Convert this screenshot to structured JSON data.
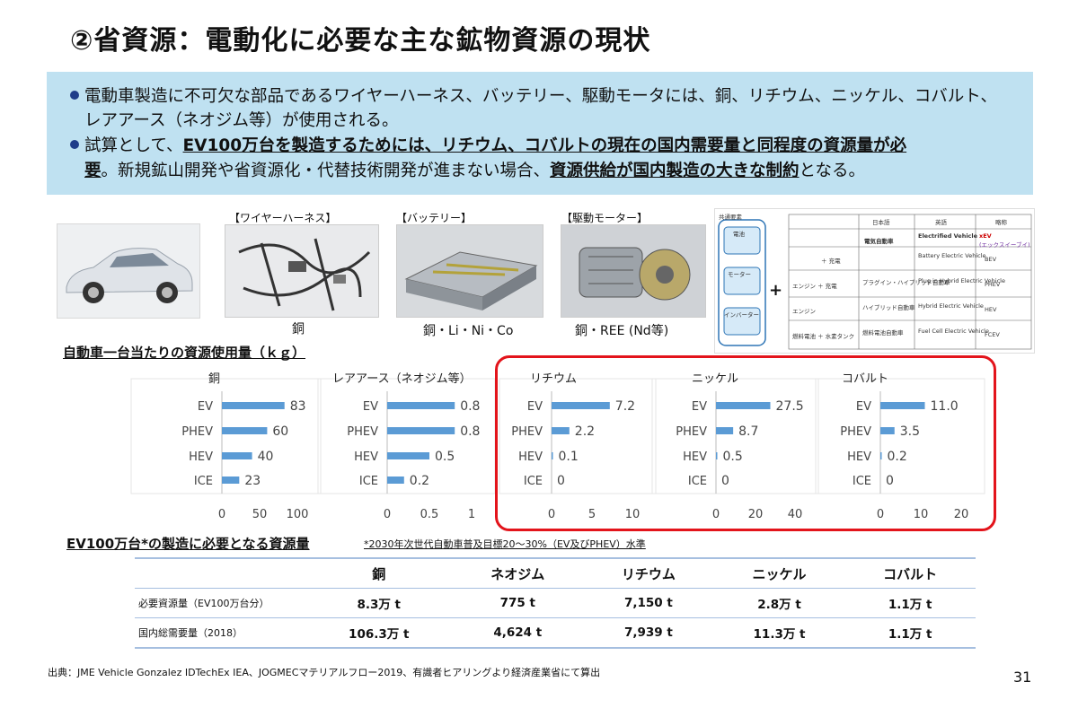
{
  "page": {
    "title": "②省資源：電動化に必要な主な鉱物資源の現状",
    "page_number": "31",
    "source": "出典：JME Vehicle Gonzalez IDTechEx IEA、JOGMECマテリアルフロー2019、有識者ヒアリングより経済産業省にて算出"
  },
  "summary": {
    "bullet1_line1": "電動車製造に不可欠な部品であるワイヤーハーネス、バッテリー、駆動モータには、銅、リチウム、ニッケル、コバルト、",
    "bullet1_line2": "レアアース（ネオジム等）が使用される。",
    "bullet2_a": "試算として、",
    "bullet2_b": "EV100万台を製造するためには、リチウム、コバルトの現在の国内需要量と同程度の資源量が必",
    "bullet2_c": "要",
    "bullet2_d": "。新規鉱山開発や省資源化・代替技術開発が進まない場合、",
    "bullet2_e": "資源供給が国内製造の大きな制約",
    "bullet2_f": "となる。"
  },
  "parts": {
    "harness_label": "【ワイヤーハーネス】",
    "harness_caption": "銅",
    "battery_label": "【バッテリー】",
    "battery_caption": "銅・Li・Ni・Co",
    "motor_label": "【駆動モーター】",
    "motor_caption": "銅・REE (Nd等)"
  },
  "xev_table": {
    "side_header": "共通要素",
    "side_items": [
      "電池",
      "モーター",
      "インバーター"
    ],
    "headers": [
      "日本語",
      "英語",
      "略称"
    ],
    "rows": [
      {
        "label": "",
        "jp": "電気自動車",
        "en": "Electrified Vehicle",
        "abbr": "xEV",
        "abbr_note": "(エックスイーブイ)"
      },
      {
        "label": "＋ 充電",
        "jp": "",
        "en": "Battery Electric Vehicle",
        "abbr": "BEV"
      },
      {
        "label": "エンジン ＋ 充電",
        "jp": "プラグイン・ハイブリッド自動車",
        "en": "Plug in Hybrid Electric Vehicle",
        "abbr": "PHEV"
      },
      {
        "label": "エンジン",
        "jp": "ハイブリッド自動車",
        "en": "Hybrid Electric Vehicle",
        "abbr": "HEV"
      },
      {
        "label": "燃料電池 ＋ 水素タンク",
        "jp": "燃料電池自動車",
        "en": "Fuel Cell Electric Vehicle",
        "abbr": "FCEV"
      }
    ],
    "plus": "+"
  },
  "usage_heading": "自動車一台当たりの資源使用量（ｋｇ）",
  "colors": {
    "bar": "#5b9bd5",
    "frame": "#e3141b",
    "summary_bg": "#bfe1f1",
    "table_line": "#a6bfe0"
  },
  "chart_data": [
    {
      "type": "bar",
      "orientation": "horizontal",
      "title": "銅",
      "categories": [
        "EV",
        "PHEV",
        "HEV",
        "ICE"
      ],
      "values": [
        83,
        60,
        40,
        23
      ],
      "labels": [
        "83",
        "60",
        "40",
        "23"
      ],
      "xlim": [
        0,
        100
      ],
      "xticks": [
        "0",
        "50",
        "100"
      ]
    },
    {
      "type": "bar",
      "orientation": "horizontal",
      "title": "レアアース（ネオジム等）",
      "categories": [
        "EV",
        "PHEV",
        "HEV",
        "ICE"
      ],
      "values": [
        0.8,
        0.8,
        0.5,
        0.2
      ],
      "labels": [
        "0.8",
        "0.8",
        "0.5",
        "0.2"
      ],
      "xlim": [
        0,
        1
      ],
      "xticks": [
        "0",
        "0.5",
        "1"
      ]
    },
    {
      "type": "bar",
      "orientation": "horizontal",
      "title": "リチウム",
      "categories": [
        "EV",
        "PHEV",
        "HEV",
        "ICE"
      ],
      "values": [
        7.2,
        2.2,
        0.1,
        0
      ],
      "labels": [
        "7.2",
        "2.2",
        "0.1",
        "0"
      ],
      "xlim": [
        0,
        10
      ],
      "xticks": [
        "0",
        "5",
        "10"
      ]
    },
    {
      "type": "bar",
      "orientation": "horizontal",
      "title": "ニッケル",
      "categories": [
        "EV",
        "PHEV",
        "HEV",
        "ICE"
      ],
      "values": [
        27.5,
        8.7,
        0.5,
        0
      ],
      "labels": [
        "27.5",
        "8.7",
        "0.5",
        "0"
      ],
      "xlim": [
        0,
        40
      ],
      "xticks": [
        "0",
        "20",
        "40"
      ]
    },
    {
      "type": "bar",
      "orientation": "horizontal",
      "title": "コバルト",
      "categories": [
        "EV",
        "PHEV",
        "HEV",
        "ICE"
      ],
      "values": [
        11.0,
        3.5,
        0.2,
        0
      ],
      "labels": [
        "11.0",
        "3.5",
        "0.2",
        "0"
      ],
      "xlim": [
        0,
        20
      ],
      "xticks": [
        "0",
        "10",
        "20"
      ]
    },
    {
      "type": "table",
      "title": "EV100万台*の製造に必要となる資源量",
      "note": "*2030年次世代自動車普及目標20～30%（EV及びPHEV）水準",
      "columns": [
        "",
        "銅",
        "ネオジム",
        "リチウム",
        "ニッケル",
        "コバルト"
      ],
      "rows": [
        [
          "必要資源量（EV100万台分）",
          "8.3万 t",
          "775 t",
          "7,150 t",
          "2.8万 t",
          "1.1万 t"
        ],
        [
          "国内総需要量（2018）",
          "106.3万 t",
          "4,624 t",
          "7,939 t",
          "11.3万 t",
          "1.1万 t"
        ]
      ]
    }
  ]
}
